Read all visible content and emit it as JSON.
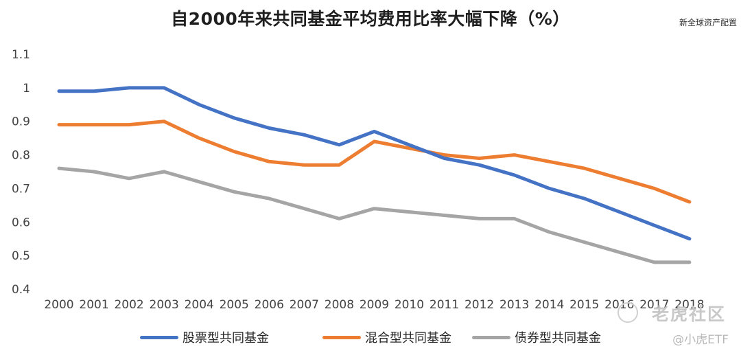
{
  "chart_data": {
    "type": "line",
    "title": "自2000年来共同基金平均费用比率大幅下降（%）",
    "source": "新全球资产配置",
    "categories": [
      "2000",
      "2001",
      "2002",
      "2003",
      "2004",
      "2005",
      "2006",
      "2007",
      "2008",
      "2009",
      "2010",
      "2011",
      "2012",
      "2013",
      "2014",
      "2015",
      "2016",
      "2017",
      "2018"
    ],
    "ylim": [
      0.4,
      1.1
    ],
    "yticks": [
      0.4,
      0.5,
      0.6,
      0.7,
      0.8,
      0.9,
      1,
      1.1
    ],
    "ytick_labels": [
      "0.4",
      "0.5",
      "0.6",
      "0.7",
      "0.8",
      "0.9",
      "1",
      "1.1"
    ],
    "grid": false,
    "legend_position": "bottom",
    "series": [
      {
        "name": "股票型共同基金",
        "color": "#4472C4",
        "values": [
          0.99,
          0.99,
          1.0,
          1.0,
          0.95,
          0.91,
          0.88,
          0.86,
          0.83,
          0.87,
          0.83,
          0.79,
          0.77,
          0.74,
          0.7,
          0.67,
          0.63,
          0.59,
          0.55
        ]
      },
      {
        "name": "混合型共同基金",
        "color": "#ED7D31",
        "values": [
          0.89,
          0.89,
          0.89,
          0.9,
          0.85,
          0.81,
          0.78,
          0.77,
          0.77,
          0.84,
          0.82,
          0.8,
          0.79,
          0.8,
          0.78,
          0.76,
          0.73,
          0.7,
          0.66
        ]
      },
      {
        "name": "债券型共同基金",
        "color": "#A5A5A5",
        "values": [
          0.76,
          0.75,
          0.73,
          0.75,
          0.72,
          0.69,
          0.67,
          0.64,
          0.61,
          0.64,
          0.63,
          0.62,
          0.61,
          0.61,
          0.57,
          0.54,
          0.51,
          0.48,
          0.48
        ]
      }
    ]
  },
  "watermark": {
    "brand": "老虎社区",
    "handle": "@小虎ETF"
  }
}
